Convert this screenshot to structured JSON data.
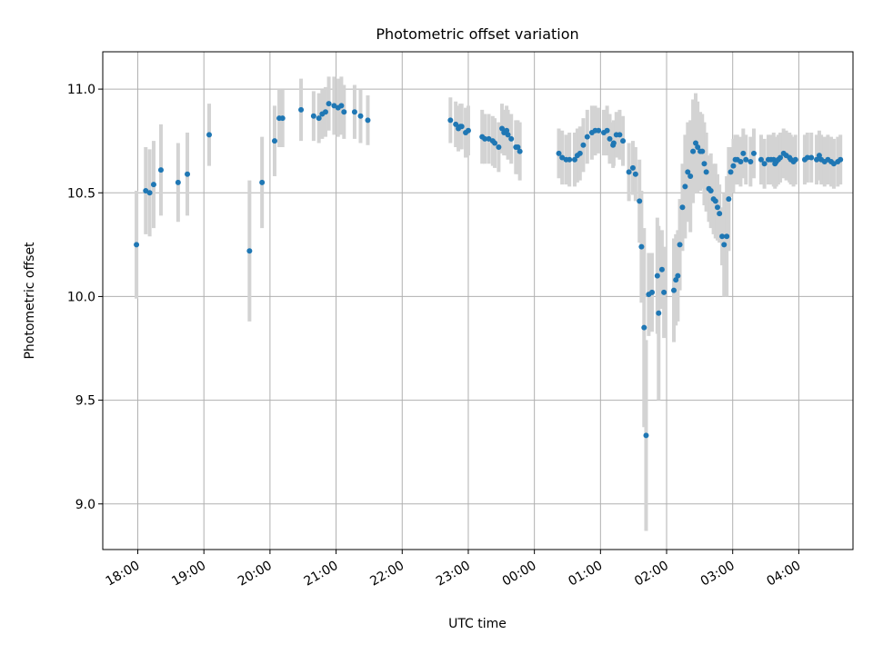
{
  "chart_data": {
    "type": "scatter",
    "title": "Photometric offset variation",
    "xlabel": "UTC time",
    "ylabel": "Photometric offset",
    "grid": true,
    "x_unit": "hours since 18:00 UTC",
    "xlim": [
      -0.53,
      10.82
    ],
    "ylim": [
      8.78,
      11.18
    ],
    "x_ticks": [
      {
        "value": 0,
        "label": "18:00"
      },
      {
        "value": 1,
        "label": "19:00"
      },
      {
        "value": 2,
        "label": "20:00"
      },
      {
        "value": 3,
        "label": "21:00"
      },
      {
        "value": 4,
        "label": "22:00"
      },
      {
        "value": 5,
        "label": "23:00"
      },
      {
        "value": 6,
        "label": "00:00"
      },
      {
        "value": 7,
        "label": "01:00"
      },
      {
        "value": 8,
        "label": "02:00"
      },
      {
        "value": 9,
        "label": "03:00"
      },
      {
        "value": 10,
        "label": "04:00"
      }
    ],
    "y_ticks": [
      {
        "value": 9.0,
        "label": "9.0"
      },
      {
        "value": 9.5,
        "label": "9.5"
      },
      {
        "value": 10.0,
        "label": "10.0"
      },
      {
        "value": 10.5,
        "label": "10.5"
      },
      {
        "value": 11.0,
        "label": "11.0"
      }
    ],
    "series": [
      {
        "name": "Photometric offset",
        "marker_color": "#1f77b4",
        "errorbar_color": "#d3d3d3",
        "x": [
          -0.02,
          0.12,
          0.18,
          0.24,
          0.35,
          0.61,
          0.75,
          1.08,
          1.69,
          1.88,
          2.07,
          2.14,
          2.19,
          2.47,
          2.66,
          2.74,
          2.79,
          2.84,
          2.89,
          2.97,
          3.03,
          3.08,
          3.12,
          3.28,
          3.37,
          3.48,
          4.73,
          4.81,
          4.85,
          4.88,
          4.9,
          4.96,
          5.0,
          5.21,
          5.25,
          5.31,
          5.37,
          5.4,
          5.46,
          5.51,
          5.54,
          5.58,
          5.6,
          5.65,
          5.72,
          5.75,
          5.78,
          6.37,
          6.42,
          6.48,
          6.53,
          6.61,
          6.65,
          6.69,
          6.74,
          6.8,
          6.87,
          6.92,
          6.97,
          7.05,
          7.1,
          7.14,
          7.19,
          7.2,
          7.24,
          7.29,
          7.34,
          7.43,
          7.49,
          7.53,
          7.59,
          7.62,
          7.66,
          7.69,
          7.73,
          7.78,
          7.86,
          7.88,
          7.93,
          7.96,
          8.11,
          8.14,
          8.17,
          8.2,
          8.24,
          8.28,
          8.32,
          8.36,
          8.4,
          8.44,
          8.47,
          8.51,
          8.54,
          8.57,
          8.6,
          8.64,
          8.67,
          8.71,
          8.74,
          8.77,
          8.8,
          8.84,
          8.87,
          8.91,
          8.94,
          8.97,
          9.01,
          9.04,
          9.07,
          9.12,
          9.16,
          9.2,
          9.27,
          9.32,
          9.43,
          9.48,
          9.54,
          9.58,
          9.62,
          9.64,
          9.66,
          9.69,
          9.72,
          9.77,
          9.81,
          9.86,
          9.88,
          9.92,
          9.95,
          10.09,
          10.13,
          10.19,
          10.27,
          10.31,
          10.34,
          10.39,
          10.44,
          10.49,
          10.53,
          10.59,
          10.63
        ],
        "y": [
          10.25,
          10.51,
          10.5,
          10.54,
          10.61,
          10.55,
          10.59,
          10.78,
          10.22,
          10.55,
          10.75,
          10.86,
          10.86,
          10.9,
          10.87,
          10.86,
          10.88,
          10.89,
          10.93,
          10.92,
          10.91,
          10.92,
          10.89,
          10.89,
          10.87,
          10.85,
          10.85,
          10.83,
          10.81,
          10.82,
          10.82,
          10.79,
          10.8,
          10.77,
          10.76,
          10.76,
          10.75,
          10.74,
          10.72,
          10.81,
          10.79,
          10.8,
          10.78,
          10.76,
          10.72,
          10.72,
          10.7,
          10.69,
          10.67,
          10.66,
          10.66,
          10.66,
          10.68,
          10.69,
          10.73,
          10.77,
          10.79,
          10.8,
          10.8,
          10.79,
          10.8,
          10.76,
          10.73,
          10.74,
          10.78,
          10.78,
          10.75,
          10.6,
          10.62,
          10.59,
          10.46,
          10.24,
          9.85,
          9.33,
          10.01,
          10.02,
          10.1,
          9.92,
          10.13,
          10.02,
          10.03,
          10.08,
          10.1,
          10.25,
          10.43,
          10.53,
          10.6,
          10.58,
          10.7,
          10.74,
          10.72,
          10.7,
          10.7,
          10.64,
          10.6,
          10.52,
          10.51,
          10.47,
          10.46,
          10.43,
          10.4,
          10.29,
          10.25,
          10.29,
          10.47,
          10.6,
          10.63,
          10.66,
          10.66,
          10.65,
          10.69,
          10.66,
          10.65,
          10.69,
          10.66,
          10.64,
          10.66,
          10.66,
          10.66,
          10.64,
          10.65,
          10.66,
          10.67,
          10.69,
          10.68,
          10.67,
          10.66,
          10.65,
          10.66,
          10.66,
          10.67,
          10.67,
          10.66,
          10.68,
          10.66,
          10.65,
          10.66,
          10.65,
          10.64,
          10.65,
          10.66
        ],
        "err": [
          0.26,
          0.21,
          0.21,
          0.21,
          0.22,
          0.19,
          0.2,
          0.15,
          0.34,
          0.22,
          0.17,
          0.14,
          0.14,
          0.15,
          0.12,
          0.12,
          0.12,
          0.12,
          0.13,
          0.14,
          0.14,
          0.14,
          0.13,
          0.13,
          0.13,
          0.12,
          0.11,
          0.11,
          0.11,
          0.11,
          0.11,
          0.12,
          0.12,
          0.13,
          0.12,
          0.12,
          0.12,
          0.12,
          0.12,
          0.12,
          0.11,
          0.12,
          0.12,
          0.12,
          0.13,
          0.13,
          0.14,
          0.12,
          0.13,
          0.12,
          0.13,
          0.13,
          0.13,
          0.13,
          0.13,
          0.13,
          0.13,
          0.12,
          0.11,
          0.11,
          0.12,
          0.12,
          0.11,
          0.11,
          0.11,
          0.12,
          0.12,
          0.14,
          0.13,
          0.13,
          0.2,
          0.27,
          0.48,
          0.46,
          0.2,
          0.19,
          0.28,
          0.42,
          0.19,
          0.22,
          0.25,
          0.22,
          0.22,
          0.22,
          0.21,
          0.25,
          0.24,
          0.27,
          0.25,
          0.24,
          0.22,
          0.19,
          0.18,
          0.2,
          0.19,
          0.16,
          0.18,
          0.17,
          0.18,
          0.16,
          0.14,
          0.14,
          0.25,
          0.29,
          0.25,
          0.12,
          0.13,
          0.12,
          0.12,
          0.12,
          0.12,
          0.12,
          0.12,
          0.12,
          0.12,
          0.12,
          0.12,
          0.12,
          0.13,
          0.12,
          0.12,
          0.12,
          0.12,
          0.12,
          0.12,
          0.12,
          0.12,
          0.12,
          0.12,
          0.12,
          0.12,
          0.12,
          0.12,
          0.12,
          0.12,
          0.12,
          0.12,
          0.12,
          0.12,
          0.12,
          0.12
        ]
      }
    ]
  }
}
